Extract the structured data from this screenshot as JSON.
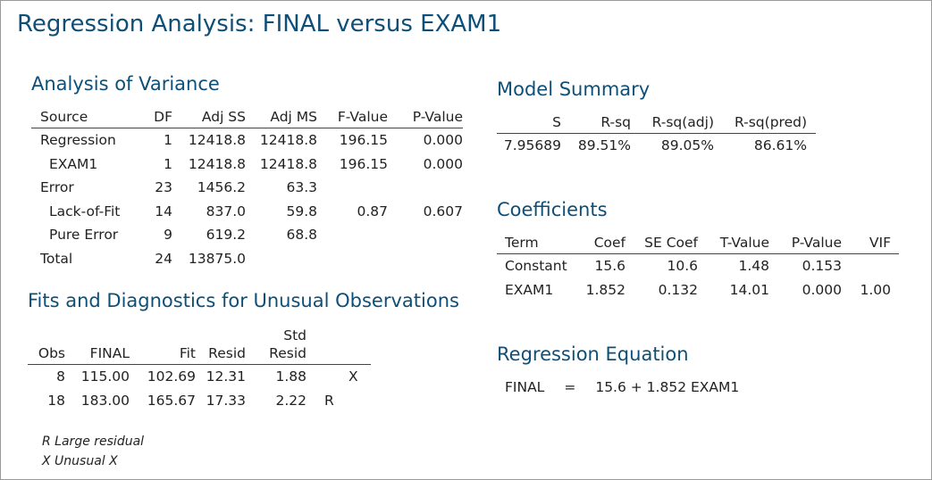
{
  "title": "Regression Analysis: FINAL versus EXAM1",
  "anova": {
    "heading": "Analysis of Variance",
    "headers": [
      "Source",
      "DF",
      "Adj SS",
      "Adj MS",
      "F-Value",
      "P-Value"
    ],
    "rows": [
      {
        "source": "Regression",
        "df": "1",
        "adj_ss": "12418.8",
        "adj_ms": "12418.8",
        "f": "196.15",
        "p": "0.000"
      },
      {
        "source": "EXAM1",
        "df": "1",
        "adj_ss": "12418.8",
        "adj_ms": "12418.8",
        "f": "196.15",
        "p": "0.000"
      },
      {
        "source": "Error",
        "df": "23",
        "adj_ss": "1456.2",
        "adj_ms": "63.3",
        "f": "",
        "p": ""
      },
      {
        "source": "Lack-of-Fit",
        "df": "14",
        "adj_ss": "837.0",
        "adj_ms": "59.8",
        "f": "0.87",
        "p": "0.607"
      },
      {
        "source": "Pure Error",
        "df": "9",
        "adj_ss": "619.2",
        "adj_ms": "68.8",
        "f": "",
        "p": ""
      },
      {
        "source": "Total",
        "df": "24",
        "adj_ss": "13875.0",
        "adj_ms": "",
        "f": "",
        "p": ""
      }
    ]
  },
  "model_summary": {
    "heading": "Model Summary",
    "headers": [
      "S",
      "R-sq",
      "R-sq(adj)",
      "R-sq(pred)"
    ],
    "row": [
      "7.95689",
      "89.51%",
      "89.05%",
      "86.61%"
    ]
  },
  "coefficients": {
    "heading": "Coefficients",
    "headers": [
      "Term",
      "Coef",
      "SE Coef",
      "T-Value",
      "P-Value",
      "VIF"
    ],
    "rows": [
      [
        "Constant",
        "15.6",
        "10.6",
        "1.48",
        "0.153",
        ""
      ],
      [
        "EXAM1",
        "1.852",
        "0.132",
        "14.01",
        "0.000",
        "1.00"
      ]
    ]
  },
  "regression_equation": {
    "heading": "Regression Equation",
    "lhs": "FINAL",
    "eq": "=",
    "rhs": "15.6 + 1.852 EXAM1"
  },
  "unusual": {
    "heading": "Fits and Diagnostics for Unusual Observations",
    "headers_top": [
      "",
      "",
      "",
      "",
      "Std",
      ""
    ],
    "headers": [
      "Obs",
      "FINAL",
      "Fit",
      "Resid",
      "Resid",
      ""
    ],
    "rows": [
      [
        "8",
        "115.00",
        "102.69",
        "12.31",
        "1.88",
        "X"
      ],
      [
        "18",
        "183.00",
        "165.67",
        "17.33",
        "2.22",
        "R"
      ]
    ],
    "footnotes": [
      "R  Large residual",
      "X  Unusual X"
    ]
  }
}
